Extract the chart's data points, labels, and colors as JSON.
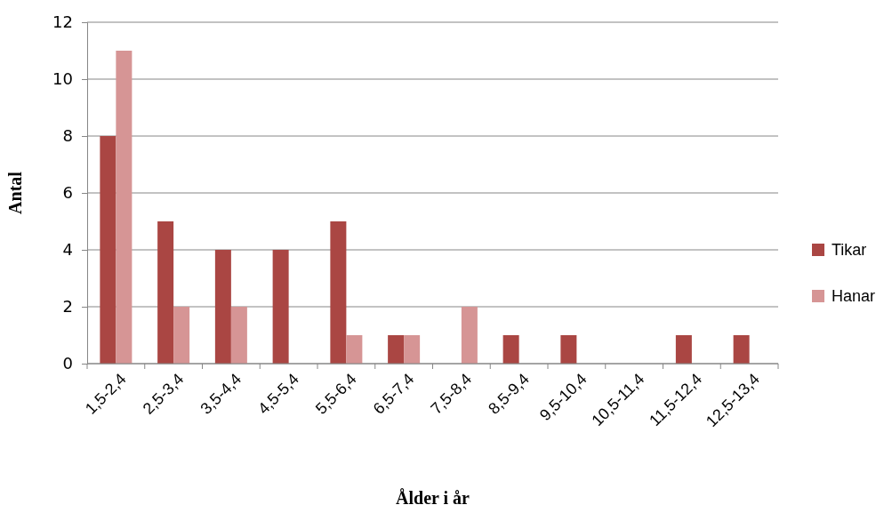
{
  "chart_data": {
    "type": "bar",
    "xlabel": "Ålder i år",
    "ylabel": "Antal",
    "categories": [
      "1,5-2,4",
      "2,5-3,4",
      "3,5-4,4",
      "4,5-5,4",
      "5,5-6,4",
      "6,5-7,4",
      "7,5-8,4",
      "8,5-9,4",
      "9,5-10,4",
      "10,5-11,4",
      "11,5-12,4",
      "12,5-13,4"
    ],
    "series": [
      {
        "name": "Tikar",
        "color": "#aa4643",
        "values": [
          8,
          5,
          4,
          4,
          5,
          1,
          0,
          1,
          1,
          0,
          1,
          1
        ]
      },
      {
        "name": "Hanar",
        "color": "#d69595",
        "values": [
          11,
          2,
          2,
          0,
          1,
          1,
          2,
          0,
          0,
          0,
          0,
          0
        ]
      }
    ],
    "ylim": [
      0,
      12
    ],
    "yticks": [
      0,
      2,
      4,
      6,
      8,
      10,
      12
    ],
    "grid": "y",
    "legend": "right"
  }
}
